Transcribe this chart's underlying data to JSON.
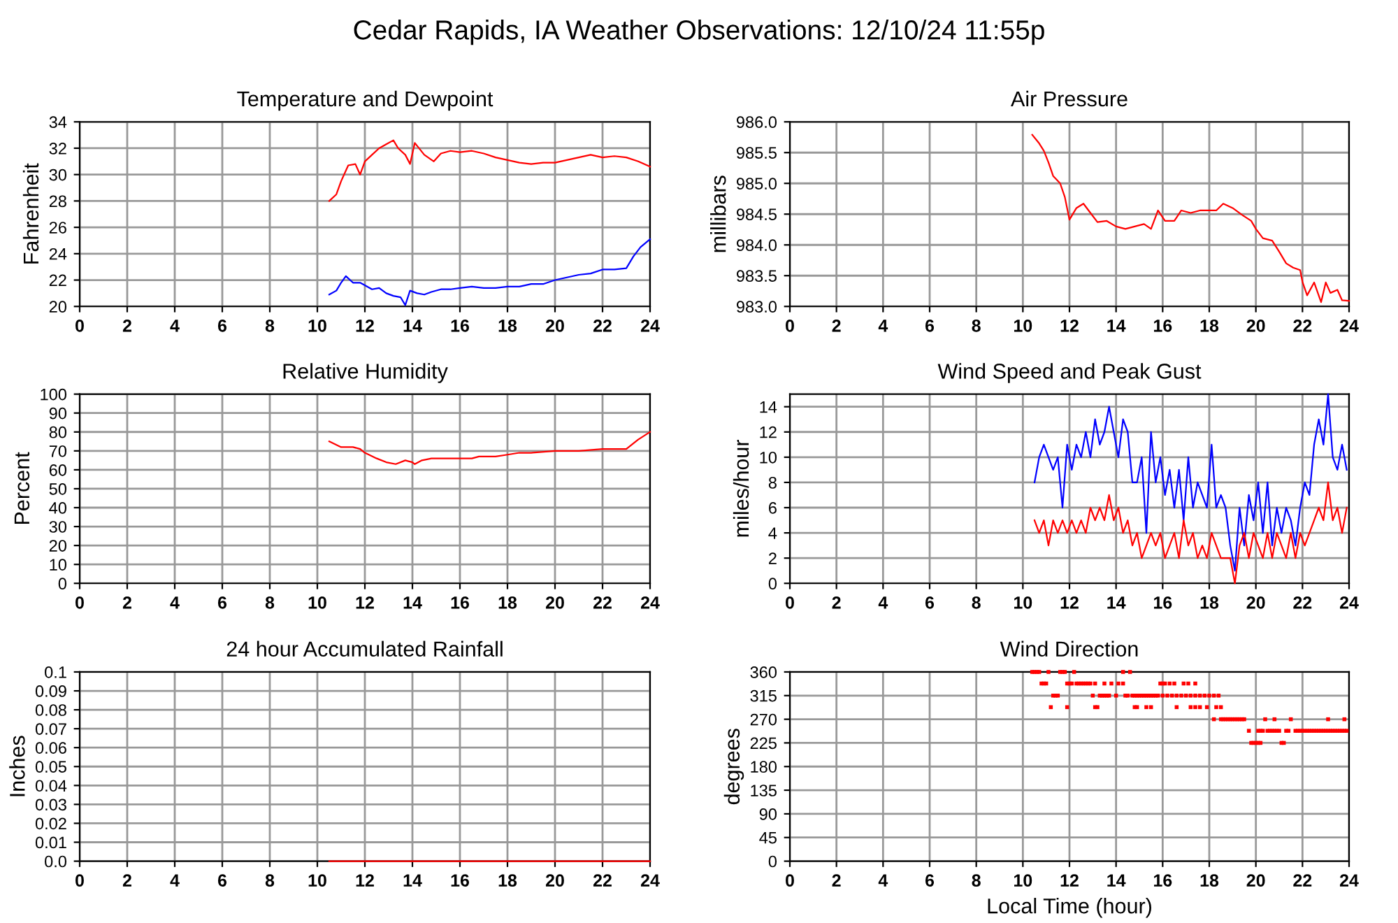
{
  "chart_data": [
    {
      "type": "line",
      "title": "Temperature and Dewpoint",
      "ylabel": "Fahrenheit",
      "annotations": [
        "Cedar Rapids, IA Weather Observations: 12/10/24 11:55p"
      ],
      "xlim": [
        0,
        24
      ],
      "xticks": [
        0,
        2,
        4,
        6,
        8,
        10,
        12,
        14,
        16,
        18,
        20,
        22,
        24
      ],
      "ylim": [
        20,
        34
      ],
      "yticks": [
        20,
        22,
        24,
        26,
        28,
        30,
        32,
        34
      ],
      "grid": true,
      "series": [
        {
          "color": "#ff0000",
          "x": [
            10.5,
            10.8,
            11,
            11.3,
            11.6,
            11.8,
            12,
            12.3,
            12.6,
            12.9,
            13.2,
            13.4,
            13.7,
            13.9,
            14.1,
            14.5,
            14.9,
            15.2,
            15.6,
            16,
            16.5,
            17,
            17.5,
            18,
            18.5,
            19,
            19.5,
            20,
            20.5,
            21,
            21.5,
            22,
            22.5,
            23,
            23.5,
            24
          ],
          "values": [
            28,
            28.5,
            29.5,
            30.7,
            30.8,
            30,
            31,
            31.5,
            32,
            32.3,
            32.6,
            32,
            31.5,
            30.8,
            32.4,
            31.5,
            31,
            31.6,
            31.8,
            31.7,
            31.8,
            31.6,
            31.3,
            31.1,
            30.9,
            30.8,
            30.9,
            30.9,
            31.1,
            31.3,
            31.5,
            31.3,
            31.4,
            31.3,
            31,
            30.6
          ]
        },
        {
          "color": "#0000ff",
          "x": [
            10.5,
            10.8,
            11,
            11.2,
            11.5,
            11.8,
            12,
            12.3,
            12.6,
            12.9,
            13.2,
            13.5,
            13.7,
            13.9,
            14.2,
            14.5,
            14.8,
            15.2,
            15.6,
            16,
            16.5,
            17,
            17.5,
            18,
            18.5,
            19,
            19.5,
            20,
            20.5,
            21,
            21.5,
            22,
            22.5,
            23,
            23.3,
            23.6,
            24
          ],
          "values": [
            20.9,
            21.2,
            21.8,
            22.3,
            21.8,
            21.8,
            21.6,
            21.3,
            21.4,
            21,
            20.8,
            20.7,
            20.1,
            21.2,
            21,
            20.9,
            21.1,
            21.3,
            21.3,
            21.4,
            21.5,
            21.4,
            21.4,
            21.5,
            21.5,
            21.7,
            21.7,
            22,
            22.2,
            22.4,
            22.5,
            22.8,
            22.8,
            22.9,
            23.8,
            24.5,
            25.1
          ]
        }
      ]
    },
    {
      "type": "line",
      "title": "Air Pressure",
      "ylabel": "millibars",
      "xlim": [
        0,
        24
      ],
      "xticks": [
        0,
        2,
        4,
        6,
        8,
        10,
        12,
        14,
        16,
        18,
        20,
        22,
        24
      ],
      "ylim": [
        983,
        986
      ],
      "yticks": [
        {
          "value": 983,
          "label": "983.0"
        },
        {
          "value": 983.5,
          "label": "983.5"
        },
        {
          "value": 984,
          "label": "984.0"
        },
        {
          "value": 984.5,
          "label": "984.5"
        },
        {
          "value": 985,
          "label": "985.0"
        },
        {
          "value": 985.5,
          "label": "985.5"
        },
        {
          "value": 986,
          "label": "986.0"
        }
      ],
      "grid": true,
      "series": [
        {
          "color": "#ff0000",
          "x": [
            10.4,
            10.7,
            10.9,
            11.1,
            11.3,
            11.6,
            11.8,
            12,
            12.3,
            12.6,
            12.9,
            13.2,
            13.6,
            14,
            14.4,
            14.8,
            15.2,
            15.5,
            15.8,
            16.1,
            16.5,
            16.8,
            17.2,
            17.6,
            18,
            18.3,
            18.6,
            19,
            19.4,
            19.8,
            20,
            20.3,
            20.7,
            21,
            21.3,
            21.6,
            21.9,
            22,
            22.2,
            22.5,
            22.8,
            23,
            23.2,
            23.5,
            23.7,
            24
          ],
          "values": [
            985.79,
            985.65,
            985.53,
            985.34,
            985.12,
            985.0,
            984.78,
            984.41,
            984.6,
            984.67,
            984.52,
            984.37,
            984.39,
            984.3,
            984.26,
            984.3,
            984.34,
            984.26,
            984.56,
            984.39,
            984.39,
            984.56,
            984.52,
            984.56,
            984.56,
            984.56,
            984.67,
            984.6,
            984.49,
            984.39,
            984.26,
            984.11,
            984.07,
            983.89,
            983.7,
            983.63,
            983.59,
            983.4,
            983.18,
            983.39,
            983.07,
            983.39,
            983.22,
            983.27,
            983.1,
            983.09
          ]
        }
      ]
    },
    {
      "type": "line",
      "title": "Relative Humidity",
      "ylabel": "Percent",
      "xlim": [
        0,
        24
      ],
      "xticks": [
        0,
        2,
        4,
        6,
        8,
        10,
        12,
        14,
        16,
        18,
        20,
        22,
        24
      ],
      "ylim": [
        0,
        100
      ],
      "yticks": [
        0,
        10,
        20,
        30,
        40,
        50,
        60,
        70,
        80,
        90,
        100
      ],
      "grid": true,
      "series": [
        {
          "color": "#ff0000",
          "x": [
            10.5,
            11,
            11.5,
            11.8,
            12,
            12.5,
            12.9,
            13.3,
            13.7,
            14,
            14.1,
            14.4,
            14.8,
            15.5,
            16.5,
            16.8,
            17.5,
            18,
            18.5,
            19,
            20,
            21,
            22,
            23,
            23.5,
            24
          ],
          "values": [
            75,
            72,
            72,
            71,
            69,
            66,
            64,
            63,
            65,
            64,
            63,
            65,
            66,
            66,
            66,
            67,
            67,
            68,
            69,
            69,
            70,
            70,
            71,
            71,
            76,
            80
          ]
        }
      ]
    },
    {
      "type": "line",
      "title": "Wind Speed and Peak Gust",
      "ylabel": "miles/hour",
      "xlim": [
        0,
        24
      ],
      "xticks": [
        0,
        2,
        4,
        6,
        8,
        10,
        12,
        14,
        16,
        18,
        20,
        22,
        24
      ],
      "ylim": [
        0,
        15
      ],
      "yticks": [
        0,
        2,
        4,
        6,
        8,
        10,
        12,
        14
      ],
      "grid": true,
      "series": [
        {
          "color": "#0000ff",
          "x": [
            10.5,
            10.7,
            10.9,
            11.1,
            11.3,
            11.5,
            11.7,
            11.9,
            12.1,
            12.3,
            12.5,
            12.7,
            12.9,
            13.1,
            13.3,
            13.5,
            13.7,
            13.9,
            14.1,
            14.3,
            14.5,
            14.7,
            14.9,
            15.1,
            15.3,
            15.5,
            15.7,
            15.9,
            16.1,
            16.3,
            16.5,
            16.7,
            16.9,
            17.1,
            17.3,
            17.5,
            17.7,
            17.9,
            18.1,
            18.3,
            18.5,
            18.7,
            18.9,
            19.1,
            19.3,
            19.5,
            19.7,
            19.9,
            20.1,
            20.3,
            20.5,
            20.7,
            20.9,
            21.1,
            21.3,
            21.5,
            21.7,
            21.9,
            22.1,
            22.3,
            22.5,
            22.7,
            22.9,
            23.1,
            23.3,
            23.5,
            23.7,
            23.9
          ],
          "values": [
            8,
            10,
            11,
            10,
            9,
            10,
            6,
            11,
            9,
            11,
            10,
            12,
            10,
            13,
            11,
            12,
            14,
            12,
            10,
            13,
            12,
            8,
            8,
            10,
            4,
            12,
            8,
            10,
            7,
            9,
            6,
            9,
            5,
            10,
            6,
            8,
            7,
            6,
            11,
            6,
            7,
            6,
            3,
            1,
            6,
            3,
            7,
            5,
            8,
            4,
            8,
            3,
            6,
            4,
            6,
            5,
            3,
            6,
            8,
            7,
            11,
            13,
            11,
            15,
            10,
            9,
            11,
            9
          ]
        },
        {
          "color": "#ff0000",
          "x": [
            10.5,
            10.7,
            10.9,
            11.1,
            11.3,
            11.5,
            11.7,
            11.9,
            12.1,
            12.3,
            12.5,
            12.7,
            12.9,
            13.1,
            13.3,
            13.5,
            13.7,
            13.9,
            14.1,
            14.3,
            14.5,
            14.7,
            14.9,
            15.1,
            15.3,
            15.5,
            15.7,
            15.9,
            16.1,
            16.3,
            16.5,
            16.7,
            16.9,
            17.1,
            17.3,
            17.5,
            17.7,
            17.9,
            18.1,
            18.3,
            18.5,
            18.7,
            18.9,
            19.1,
            19.3,
            19.5,
            19.7,
            19.9,
            20.1,
            20.3,
            20.5,
            20.7,
            20.9,
            21.1,
            21.3,
            21.5,
            21.7,
            21.9,
            22.1,
            22.3,
            22.5,
            22.7,
            22.9,
            23.1,
            23.3,
            23.5,
            23.7,
            23.9
          ],
          "values": [
            5,
            4,
            5,
            3,
            5,
            4,
            5,
            4,
            5,
            4,
            5,
            4,
            6,
            5,
            6,
            5,
            7,
            5,
            6,
            4,
            5,
            3,
            4,
            2,
            3,
            4,
            3,
            4,
            2,
            3,
            4,
            2,
            5,
            3,
            4,
            2,
            3,
            2,
            4,
            3,
            2,
            2,
            2,
            0,
            3,
            4,
            2,
            4,
            3,
            2,
            4,
            2,
            4,
            3,
            2,
            4,
            2,
            4,
            3,
            4,
            5,
            6,
            5,
            8,
            5,
            6,
            4,
            6
          ]
        }
      ]
    },
    {
      "type": "line",
      "title": "24 hour Accumulated Rainfall",
      "ylabel": "Inches",
      "xlim": [
        0,
        24
      ],
      "xticks": [
        0,
        2,
        4,
        6,
        8,
        10,
        12,
        14,
        16,
        18,
        20,
        22,
        24
      ],
      "ylim": [
        0,
        0.1
      ],
      "yticks": [
        {
          "value": 0,
          "label": "0.0"
        },
        0.01,
        0.02,
        0.03,
        0.04,
        0.05,
        0.06,
        0.07,
        0.08,
        0.09,
        0.1
      ],
      "grid": true,
      "series": [
        {
          "color": "#ff0000",
          "x": [
            10.5,
            24
          ],
          "values": [
            0,
            0
          ]
        }
      ]
    },
    {
      "type": "scatter",
      "title": "Wind Direction",
      "ylabel": "degrees",
      "xlabel": "Local Time (hour)",
      "xlim": [
        0,
        24
      ],
      "xticks": [
        0,
        2,
        4,
        6,
        8,
        10,
        12,
        14,
        16,
        18,
        20,
        22,
        24
      ],
      "ylim": [
        0,
        360
      ],
      "yticks": [
        0,
        45,
        90,
        135,
        180,
        225,
        270,
        315,
        360
      ],
      "grid": true,
      "marker": "square",
      "series": [
        {
          "color": "#ff0000",
          "x": [
            10.4,
            10.5,
            10.6,
            10.7,
            11.1,
            11.6,
            11.7,
            11.8,
            12.2,
            14.3,
            14.6,
            10.8,
            10.9,
            11.0,
            11.9,
            12.0,
            12.1,
            12.3,
            12.4,
            12.5,
            12.6,
            12.7,
            12.8,
            12.9,
            13.1,
            13.5,
            13.8,
            14.1,
            14.3,
            15.9,
            16.0,
            16.1,
            16.3,
            16.5,
            16.9,
            17.1,
            17.4,
            11.3,
            11.4,
            11.5,
            13.0,
            13.3,
            13.4,
            13.5,
            13.6,
            13.7,
            14.0,
            14.4,
            14.5,
            14.7,
            14.8,
            14.9,
            15.0,
            15.1,
            15.2,
            15.3,
            15.4,
            15.5,
            15.6,
            15.7,
            15.8,
            16.0,
            16.2,
            16.4,
            16.6,
            16.8,
            17.0,
            17.2,
            17.4,
            17.6,
            17.8,
            18.0,
            18.2,
            18.4,
            11.2,
            11.9,
            13.1,
            13.2,
            14.8,
            14.9,
            15.3,
            15.5,
            16.6,
            17.2,
            17.4,
            17.6,
            17.9,
            18.3,
            18.5,
            18.2,
            18.5,
            18.6,
            18.7,
            18.8,
            18.9,
            19.0,
            19.1,
            19.2,
            19.3,
            19.4,
            19.5,
            20.4,
            20.8,
            21.5,
            23.1,
            23.8,
            19.7,
            20.1,
            20.2,
            20.3,
            20.5,
            20.6,
            20.7,
            20.8,
            20.9,
            21.0,
            21.3,
            21.4,
            21.7,
            21.8,
            21.9,
            22.0,
            22.1,
            22.2,
            22.3,
            22.4,
            22.5,
            22.6,
            22.7,
            22.8,
            22.9,
            23.0,
            23.1,
            23.2,
            23.3,
            23.4,
            23.5,
            23.6,
            23.7,
            23.8,
            23.9,
            19.8,
            19.9,
            20.0,
            20.1,
            20.2,
            21.1,
            21.2
          ],
          "values": [
            360,
            360,
            360,
            360,
            360,
            360,
            360,
            360,
            360,
            360,
            360,
            338,
            338,
            338,
            338,
            338,
            338,
            338,
            338,
            338,
            338,
            338,
            338,
            338,
            338,
            338,
            338,
            338,
            338,
            338,
            338,
            338,
            338,
            338,
            338,
            338,
            338,
            315,
            315,
            315,
            315,
            315,
            315,
            315,
            315,
            315,
            315,
            315,
            315,
            315,
            315,
            315,
            315,
            315,
            315,
            315,
            315,
            315,
            315,
            315,
            315,
            315,
            315,
            315,
            315,
            315,
            315,
            315,
            315,
            315,
            315,
            315,
            315,
            315,
            293,
            293,
            293,
            293,
            293,
            293,
            293,
            293,
            293,
            293,
            293,
            293,
            293,
            293,
            293,
            270,
            270,
            270,
            270,
            270,
            270,
            270,
            270,
            270,
            270,
            270,
            270,
            270,
            270,
            270,
            270,
            270,
            248,
            248,
            248,
            248,
            248,
            248,
            248,
            248,
            248,
            248,
            248,
            248,
            248,
            248,
            248,
            248,
            248,
            248,
            248,
            248,
            248,
            248,
            248,
            248,
            248,
            248,
            248,
            248,
            248,
            248,
            248,
            248,
            248,
            248,
            248,
            225,
            225,
            225,
            225,
            225,
            225,
            225
          ]
        }
      ]
    }
  ]
}
